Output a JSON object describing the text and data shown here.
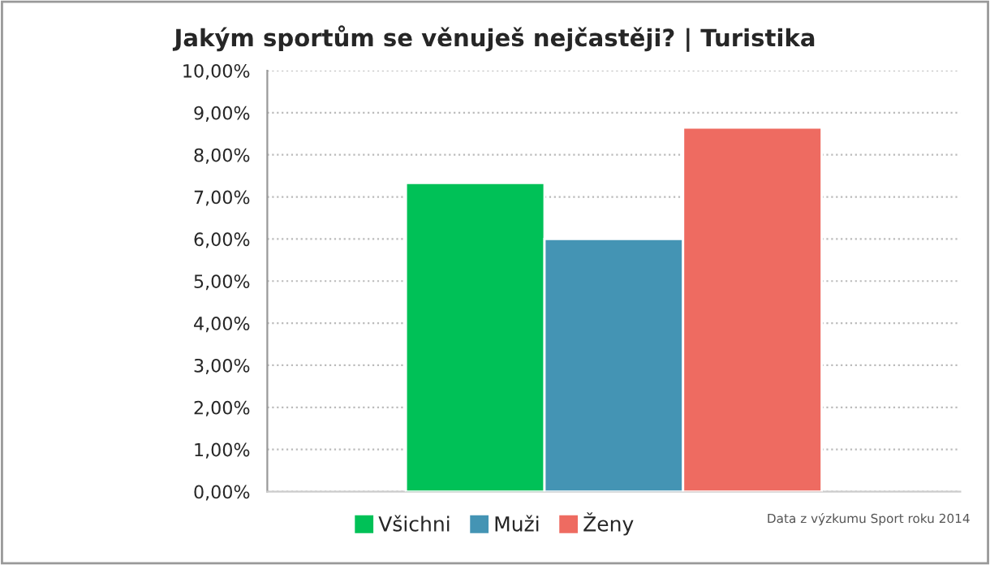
{
  "chart_data": {
    "type": "bar",
    "title": "Jakým sportům se věnuješ nejčastěji? | Turistika",
    "categories": [
      null
    ],
    "series": [
      {
        "name": "Všichni",
        "color": "#00c157",
        "values": [
          7.33
        ]
      },
      {
        "name": "Muži",
        "color": "#4494b4",
        "values": [
          6.0
        ]
      },
      {
        "name": "Ženy",
        "color": "#ee6b61",
        "values": [
          8.65
        ]
      }
    ],
    "ylim": [
      0,
      10
    ],
    "yticks": [
      {
        "value": 0,
        "label": "0,00%"
      },
      {
        "value": 1,
        "label": "1,00%"
      },
      {
        "value": 2,
        "label": "2,00%"
      },
      {
        "value": 3,
        "label": "3,00%"
      },
      {
        "value": 4,
        "label": "4,00%"
      },
      {
        "value": 5,
        "label": "5,00%"
      },
      {
        "value": 6,
        "label": "6,00%"
      },
      {
        "value": 7,
        "label": "7,00%"
      },
      {
        "value": 8,
        "label": "8,00%"
      },
      {
        "value": 9,
        "label": "9,00%"
      },
      {
        "value": 10,
        "label": "10,00%"
      }
    ],
    "grid": "y",
    "legend": "bottom",
    "annotations": [
      "Data z výzkumu Sport roku 2014"
    ]
  }
}
